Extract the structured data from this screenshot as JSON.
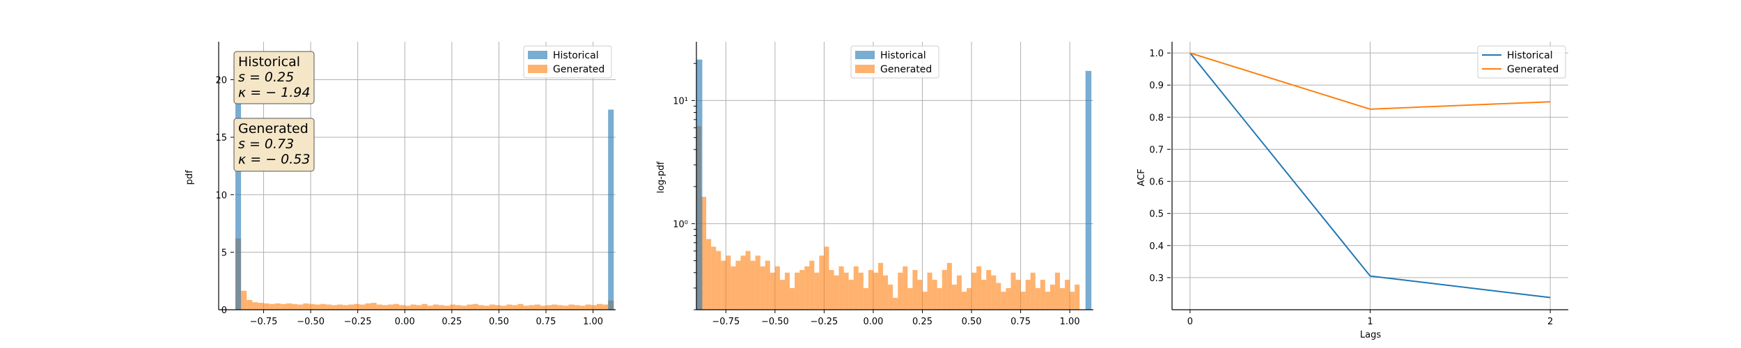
{
  "colors": {
    "historical": "#1f77b4",
    "generated": "#ff7f0e",
    "grid": "#b0b0b0",
    "annotation_fill": "#f5e6c8"
  },
  "chart_data": [
    {
      "type": "histogram",
      "title": "",
      "xlabel": "",
      "ylabel": "pdf",
      "xlim": [
        -0.9,
        1.12
      ],
      "ylim": [
        0,
        23.3
      ],
      "xticks": [
        "−0.75",
        "−0.50",
        "−0.25",
        "0.00",
        "0.25",
        "0.50",
        "0.75",
        "1.00"
      ],
      "xtick_values": [
        -0.75,
        -0.5,
        -0.25,
        0,
        0.25,
        0.5,
        0.75,
        1.0
      ],
      "yticks": [
        "0",
        "5",
        "10",
        "15",
        "20"
      ],
      "ytick_values": [
        0,
        5,
        10,
        15,
        20
      ],
      "grid": true,
      "legend": {
        "position": "top-right",
        "entries": [
          "Historical",
          "Generated"
        ]
      },
      "annotations": [
        {
          "title": "Historical",
          "lines": [
            "s = 0.25",
            "κ = − 1.94"
          ]
        },
        {
          "title": "Generated",
          "lines": [
            "s = 0.73",
            "κ = − 0.53"
          ]
        }
      ],
      "series": [
        {
          "name": "Historical",
          "bins": [
            {
              "x0": -0.9,
              "x1": -0.87,
              "value": 21.5
            },
            {
              "x0": 1.08,
              "x1": 1.11,
              "value": 17.4
            }
          ]
        },
        {
          "name": "Generated",
          "bin_start": -0.9,
          "bin_width": 0.03,
          "values": [
            6.2,
            1.65,
            0.85,
            0.65,
            0.6,
            0.55,
            0.5,
            0.55,
            0.5,
            0.55,
            0.5,
            0.45,
            0.55,
            0.5,
            0.45,
            0.5,
            0.45,
            0.4,
            0.45,
            0.4,
            0.45,
            0.5,
            0.45,
            0.55,
            0.6,
            0.45,
            0.4,
            0.45,
            0.5,
            0.4,
            0.35,
            0.45,
            0.4,
            0.5,
            0.35,
            0.45,
            0.4,
            0.35,
            0.45,
            0.4,
            0.35,
            0.45,
            0.5,
            0.4,
            0.35,
            0.45,
            0.4,
            0.35,
            0.45,
            0.4,
            0.5,
            0.35,
            0.4,
            0.45,
            0.35,
            0.4,
            0.45,
            0.4,
            0.35,
            0.45,
            0.4,
            0.35,
            0.45,
            0.4,
            0.5,
            0.45,
            0.8
          ]
        }
      ]
    },
    {
      "type": "histogram",
      "title": "",
      "xlabel": "",
      "ylabel": "log-pdf",
      "yscale": "log",
      "xlim": [
        -0.9,
        1.12
      ],
      "ylim": [
        0.2,
        30
      ],
      "xticks": [
        "−0.75",
        "−0.50",
        "−0.25",
        "0.00",
        "0.25",
        "0.50",
        "0.75",
        "1.00"
      ],
      "xtick_values": [
        -0.75,
        -0.5,
        -0.25,
        0,
        0.25,
        0.5,
        0.75,
        1.0
      ],
      "yticks": [
        "10⁰",
        "10¹"
      ],
      "ytick_values": [
        1,
        10
      ],
      "grid": true,
      "legend": {
        "position": "top-center",
        "entries": [
          "Historical",
          "Generated"
        ]
      },
      "series": [
        {
          "name": "Historical",
          "bins": [
            {
              "x0": -0.9,
              "x1": -0.87,
              "value": 21.5
            },
            {
              "x0": 1.08,
              "x1": 1.11,
              "value": 17.4
            }
          ]
        },
        {
          "name": "Generated",
          "bin_start": -0.9,
          "bin_width": 0.025,
          "values": [
            6.2,
            1.65,
            0.75,
            0.65,
            0.6,
            0.5,
            0.55,
            0.45,
            0.5,
            0.55,
            0.6,
            0.5,
            0.55,
            0.45,
            0.5,
            0.4,
            0.45,
            0.35,
            0.4,
            0.3,
            0.4,
            0.42,
            0.45,
            0.5,
            0.4,
            0.55,
            0.65,
            0.42,
            0.38,
            0.45,
            0.4,
            0.35,
            0.45,
            0.4,
            0.3,
            0.42,
            0.4,
            0.48,
            0.38,
            0.32,
            0.25,
            0.4,
            0.45,
            0.3,
            0.42,
            0.35,
            0.28,
            0.4,
            0.35,
            0.3,
            0.42,
            0.48,
            0.32,
            0.38,
            0.28,
            0.3,
            0.4,
            0.45,
            0.35,
            0.42,
            0.38,
            0.33,
            0.28,
            0.3,
            0.4,
            0.35,
            0.28,
            0.35,
            0.4,
            0.3,
            0.35,
            0.28,
            0.32,
            0.4,
            0.3,
            0.35,
            0.28,
            0.32
          ]
        }
      ]
    },
    {
      "type": "line",
      "title": "",
      "xlabel": "Lags",
      "ylabel": "ACF",
      "xlim": [
        -0.1,
        2.1
      ],
      "ylim": [
        0.2,
        1.035
      ],
      "xticks": [
        "0",
        "1",
        "2"
      ],
      "xtick_values": [
        0,
        1,
        2
      ],
      "yticks": [
        "0.3",
        "0.4",
        "0.5",
        "0.6",
        "0.7",
        "0.8",
        "0.9",
        "1.0"
      ],
      "ytick_values": [
        0.3,
        0.4,
        0.5,
        0.6,
        0.7,
        0.8,
        0.9,
        1.0
      ],
      "grid": true,
      "legend": {
        "position": "top-right",
        "entries": [
          "Historical",
          "Generated"
        ]
      },
      "x": [
        0,
        1,
        2
      ],
      "series": [
        {
          "name": "Historical",
          "values": [
            1.0,
            0.305,
            0.238
          ]
        },
        {
          "name": "Generated",
          "values": [
            1.0,
            0.825,
            0.848
          ]
        }
      ]
    }
  ]
}
